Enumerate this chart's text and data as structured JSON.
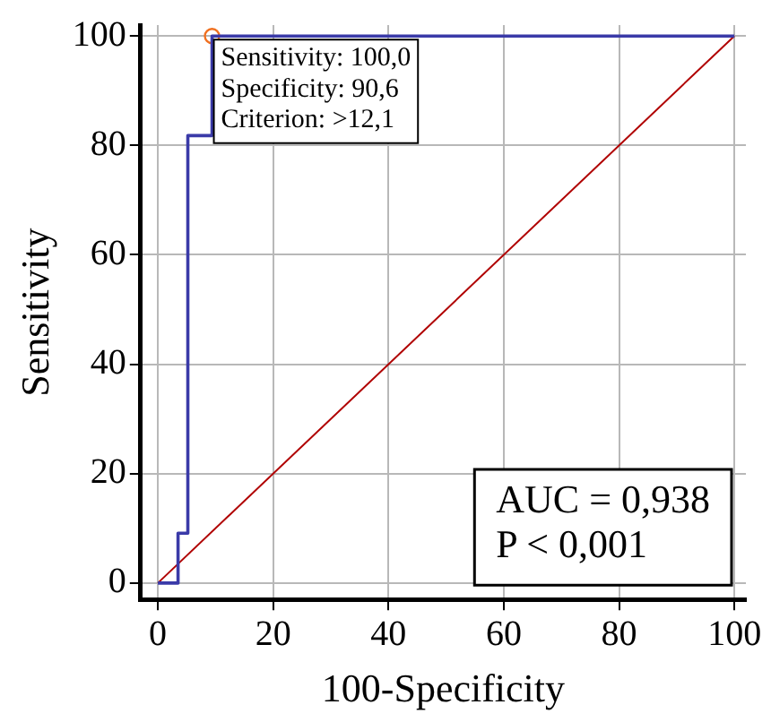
{
  "chart_data": {
    "type": "line",
    "xlabel": "100-Specificity",
    "ylabel": "Sensitivity",
    "xlim": [
      -3,
      102
    ],
    "ylim": [
      -3,
      102
    ],
    "xticks": [
      0,
      20,
      40,
      60,
      80,
      100
    ],
    "yticks": [
      0,
      20,
      40,
      60,
      80,
      100
    ],
    "grid": true,
    "legend": false,
    "line_style": "solid",
    "series": [
      {
        "type": "line",
        "color": "#3a3aa8",
        "x": [
          0,
          3.5,
          3.5,
          5.2,
          5.2,
          9.4,
          9.4,
          100
        ],
        "values": [
          0,
          0,
          9.1,
          9.1,
          81.8,
          81.8,
          100,
          100
        ],
        "marker": "none"
      },
      {
        "type": "line",
        "color": "#b00000",
        "x": [
          0,
          100
        ],
        "values": [
          0,
          100
        ],
        "marker": "none"
      },
      {
        "type": "scatter",
        "color": "#f07020",
        "x": [
          9.4
        ],
        "values": [
          100
        ],
        "marker": "circle"
      }
    ],
    "annotations": [
      {
        "text": "Sensitivity: 100,0\nSpecificity: 90,6\nCriterion: >12,1",
        "x": 9.4,
        "y": 100
      },
      "AUC = 0,938\nP < 0,001"
    ]
  }
}
